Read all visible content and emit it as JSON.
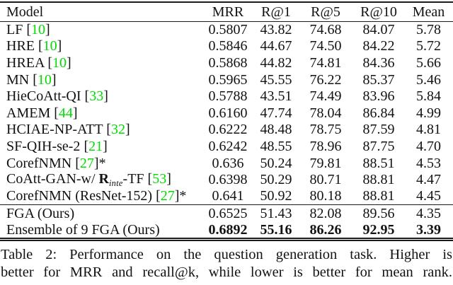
{
  "table": {
    "accent_green": "#00dd00",
    "rule_color": "#1a1a1a",
    "columns": [
      "Model",
      "MRR",
      "R@1",
      "R@5",
      "R@10",
      "Mean"
    ],
    "rows": [
      {
        "model": [
          {
            "t": "text",
            "v": "LF "
          },
          {
            "t": "cite",
            "v": "10"
          }
        ],
        "values": [
          "0.5807",
          "43.82",
          "74.68",
          "84.07",
          "5.78"
        ],
        "bold_values": false
      },
      {
        "model": [
          {
            "t": "text",
            "v": "HRE "
          },
          {
            "t": "cite",
            "v": "10"
          }
        ],
        "values": [
          "0.5846",
          "44.67",
          "74.50",
          "84.22",
          "5.72"
        ],
        "bold_values": false
      },
      {
        "model": [
          {
            "t": "text",
            "v": "HREA "
          },
          {
            "t": "cite",
            "v": "10"
          }
        ],
        "values": [
          "0.5868",
          "44.82",
          "74.81",
          "84.36",
          "5.66"
        ],
        "bold_values": false
      },
      {
        "model": [
          {
            "t": "text",
            "v": "MN "
          },
          {
            "t": "cite",
            "v": "10"
          }
        ],
        "values": [
          "0.5965",
          "45.55",
          "76.22",
          "85.37",
          "5.46"
        ],
        "bold_values": false
      },
      {
        "model": [
          {
            "t": "text",
            "v": "HieCoAtt-QI "
          },
          {
            "t": "cite",
            "v": "33"
          }
        ],
        "values": [
          "0.5788",
          "43.51",
          "74.49",
          "83.96",
          "5.84"
        ],
        "bold_values": false
      },
      {
        "model": [
          {
            "t": "text",
            "v": "AMEM "
          },
          {
            "t": "cite",
            "v": "44"
          }
        ],
        "values": [
          "0.6160",
          "47.74",
          "78.04",
          "86.84",
          "4.99"
        ],
        "bold_values": false
      },
      {
        "model": [
          {
            "t": "text",
            "v": "HCIAE-NP-ATT "
          },
          {
            "t": "cite",
            "v": "32"
          }
        ],
        "values": [
          "0.6222",
          "48.48",
          "78.75",
          "87.59",
          "4.81"
        ],
        "bold_values": false
      },
      {
        "model": [
          {
            "t": "text",
            "v": "SF-QIH-se-2 "
          },
          {
            "t": "cite",
            "v": "21"
          }
        ],
        "values": [
          "0.6242",
          "48.55",
          "78.96",
          "87.75",
          "4.70"
        ],
        "bold_values": false
      },
      {
        "model": [
          {
            "t": "text",
            "v": "CorefNMN "
          },
          {
            "t": "cite",
            "v": "27"
          },
          {
            "t": "text",
            "v": "*"
          }
        ],
        "values": [
          "0.636",
          "50.24",
          "79.81",
          "88.51",
          "4.53"
        ],
        "bold_values": false
      },
      {
        "model": [
          {
            "t": "text",
            "v": "CoAtt-GAN-w/ "
          },
          {
            "t": "mathbf",
            "v": "R"
          },
          {
            "t": "sub",
            "v": "inte"
          },
          {
            "t": "text",
            "v": "-TF "
          },
          {
            "t": "cite",
            "v": "53"
          }
        ],
        "values": [
          "0.6398",
          "50.29",
          "80.71",
          "88.81",
          "4.47"
        ],
        "bold_values": false
      },
      {
        "model": [
          {
            "t": "text",
            "v": "CorefNMN (ResNet-152) "
          },
          {
            "t": "cite",
            "v": "27"
          },
          {
            "t": "text",
            "v": "*"
          }
        ],
        "values": [
          "0.641",
          "50.92",
          "80.18",
          "88.81",
          "4.45"
        ],
        "bold_values": false
      }
    ],
    "ours_rows": [
      {
        "model": [
          {
            "t": "text",
            "v": "FGA (Ours)"
          }
        ],
        "values": [
          "0.6525",
          "51.43",
          "82.08",
          "89.56",
          "4.35"
        ],
        "bold_values": false
      },
      {
        "model": [
          {
            "t": "text",
            "v": "Ensemble of 9 FGA (Ours)"
          }
        ],
        "values": [
          "0.6892",
          "55.16",
          "86.26",
          "92.95",
          "3.39"
        ],
        "bold_values": true
      }
    ]
  },
  "caption": {
    "line1": "Table 2: Performance on the question generation task. Higher is",
    "line2": "better for MRR and recall@k, while lower is better for mean rank."
  }
}
